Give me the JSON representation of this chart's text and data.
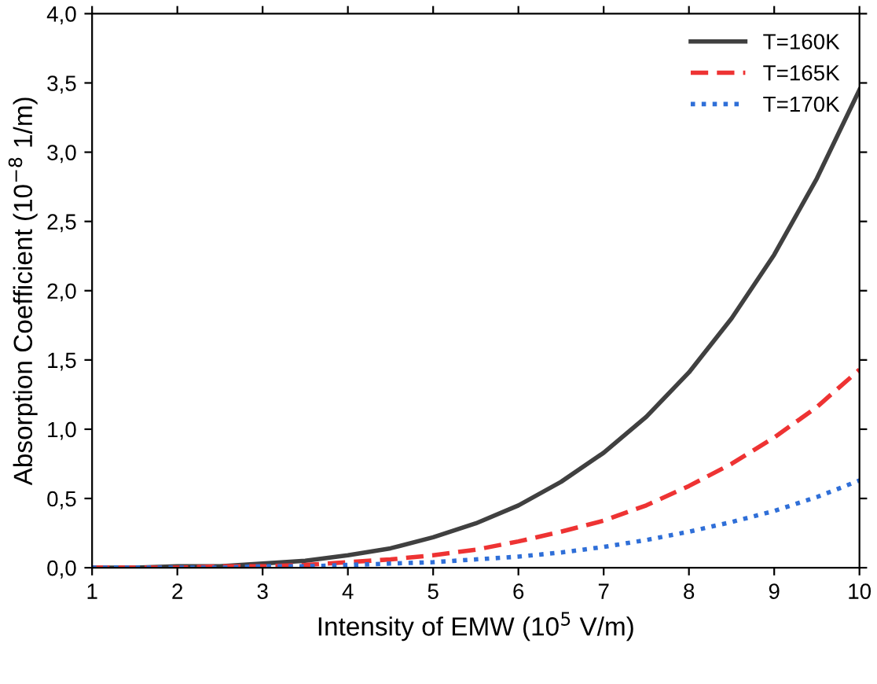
{
  "chart_data": {
    "type": "line",
    "xlabel": "Intensity of EMW (10$^{5}$ V/m)",
    "ylabel": "Absorption Coefficient (10$^{−8}$ 1/m)",
    "x": [
      1,
      1.5,
      2,
      2.5,
      3,
      3.5,
      4,
      4.5,
      5,
      5.5,
      6,
      6.5,
      7,
      7.5,
      8,
      8.5,
      9,
      9.5,
      10
    ],
    "series": [
      {
        "name": "T=160K",
        "color": "#404040",
        "line_style": "solid",
        "values": [
          0.0,
          0.0,
          0.01,
          0.01,
          0.03,
          0.05,
          0.09,
          0.14,
          0.22,
          0.32,
          0.45,
          0.62,
          0.83,
          1.09,
          1.41,
          1.8,
          2.26,
          2.81,
          3.45
        ]
      },
      {
        "name": "T=165K",
        "color": "#ee3333",
        "line_style": "dashed",
        "values": [
          0.0,
          0.0,
          0.0,
          0.01,
          0.01,
          0.02,
          0.04,
          0.06,
          0.09,
          0.13,
          0.19,
          0.26,
          0.34,
          0.45,
          0.59,
          0.75,
          0.94,
          1.16,
          1.43
        ]
      },
      {
        "name": "T=170K",
        "color": "#2f6fd8",
        "line_style": "dotted",
        "values": [
          0.0,
          0.0,
          0.0,
          0.0,
          0.01,
          0.01,
          0.02,
          0.03,
          0.04,
          0.06,
          0.08,
          0.11,
          0.15,
          0.2,
          0.26,
          0.33,
          0.41,
          0.51,
          0.63
        ]
      }
    ],
    "xlim": [
      1,
      10
    ],
    "xticks": [
      1,
      2,
      3,
      4,
      5,
      6,
      7,
      8,
      9,
      10
    ],
    "ylim": [
      0,
      4
    ],
    "yticks": [
      {
        "value": 0,
        "label": "0,0"
      },
      {
        "value": 0.5,
        "label": "0,5"
      },
      {
        "value": 1,
        "label": "1,0"
      },
      {
        "value": 1.5,
        "label": "1,5"
      },
      {
        "value": 2,
        "label": "2,0"
      },
      {
        "value": 2.5,
        "label": "2,5"
      },
      {
        "value": 3,
        "label": "3,0"
      },
      {
        "value": 3.5,
        "label": "3,5"
      },
      {
        "value": 4,
        "label": "4,0"
      }
    ],
    "grid": false,
    "legend": "top right"
  }
}
